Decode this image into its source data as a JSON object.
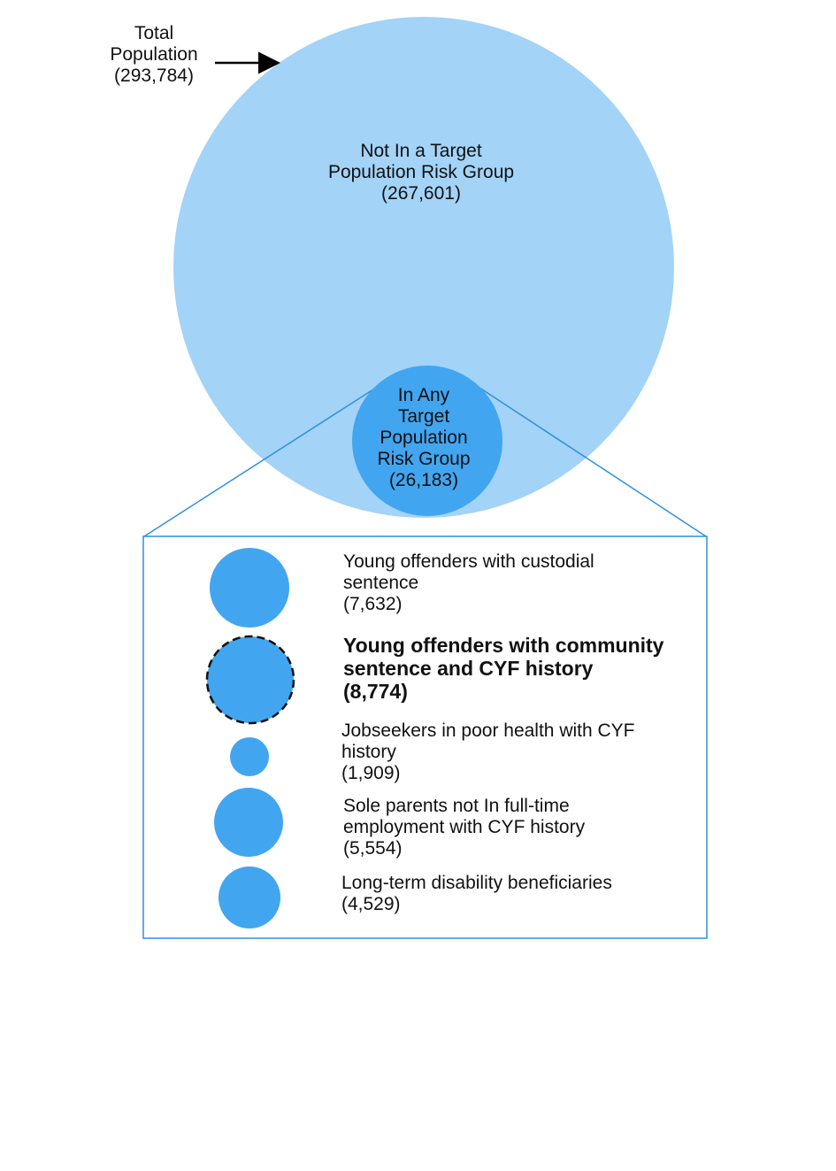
{
  "total": {
    "lines": [
      "Total",
      "Population",
      "(293,784)"
    ],
    "value": 293784
  },
  "not_in_group": {
    "lines": [
      "Not In a Target",
      "Population  Risk Group",
      "(267,601)"
    ],
    "value": 267601
  },
  "in_any_group": {
    "lines": [
      "In Any",
      "Target",
      "Population",
      "Risk Group",
      "(26,183)"
    ],
    "value": 26183
  },
  "groups": [
    {
      "lines": [
        "Young offenders with custodial",
        "sentence",
        "(7,632)"
      ],
      "value": 7632,
      "bold": false,
      "dashed": false
    },
    {
      "lines": [
        "Young offenders with community",
        "sentence and CYF history",
        "(8,774)"
      ],
      "value": 8774,
      "bold": true,
      "dashed": true
    },
    {
      "lines": [
        "Jobseekers in poor health with CYF",
        "history",
        "(1,909)"
      ],
      "value": 1909,
      "bold": false,
      "dashed": false
    },
    {
      "lines": [
        "Sole parents not In full-time",
        "employment with CYF history",
        "(5,554)"
      ],
      "value": 5554,
      "bold": false,
      "dashed": false
    },
    {
      "lines": [
        "Long-term disability beneficiaries",
        "(4,529)"
      ],
      "value": 4529,
      "bold": false,
      "dashed": false
    }
  ],
  "colors": {
    "big_circle": "#a3d3f7",
    "small_circle": "#42a5f0",
    "outline": "#2f8fe0"
  }
}
